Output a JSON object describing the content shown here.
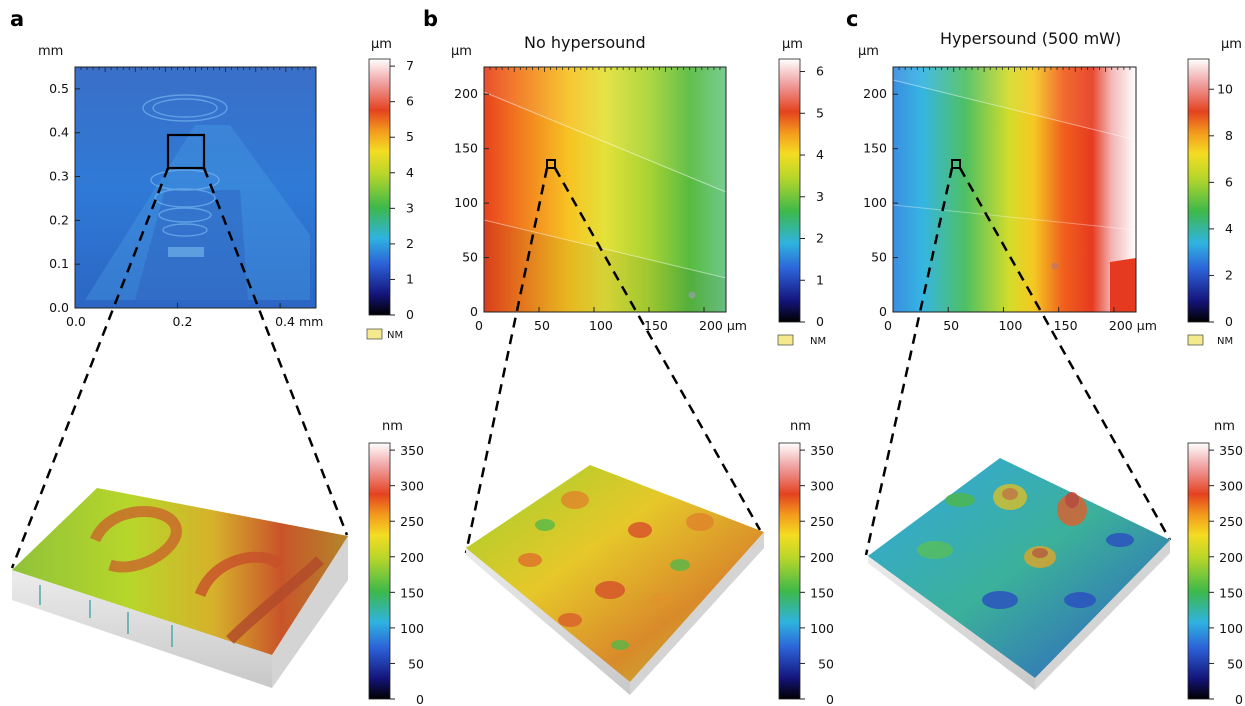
{
  "panels": [
    {
      "label": "a",
      "title": "",
      "map": {
        "y_unit": "mm",
        "x_ticks": [
          "0.0",
          "0.2",
          "0.4 mm"
        ],
        "y_ticks": [
          "0.0",
          "0.1",
          "0.2",
          "0.3",
          "0.4",
          "0.5"
        ],
        "x_range": [
          0,
          0.47
        ],
        "y_range": [
          0,
          0.55
        ]
      },
      "map_colorbar": {
        "unit": "µm",
        "ticks": [
          "0",
          "1",
          "2",
          "3",
          "4",
          "5",
          "6",
          "7"
        ],
        "range": [
          0,
          7.2
        ],
        "no_data_label": "NM"
      },
      "surface_colorbar": {
        "unit": "nm",
        "ticks": [
          "0",
          "50",
          "100",
          "150",
          "200",
          "250",
          "300",
          "350"
        ],
        "range": [
          0,
          360
        ]
      }
    },
    {
      "label": "b",
      "title": "No hypersound",
      "map": {
        "y_unit": "µm",
        "x_ticks": [
          "0",
          "50",
          "100",
          "150",
          "200 µm"
        ],
        "y_ticks": [
          "0",
          "50",
          "100",
          "150",
          "200"
        ],
        "x_range": [
          0,
          220
        ],
        "y_range": [
          0,
          225
        ]
      },
      "map_colorbar": {
        "unit": "µm",
        "ticks": [
          "0",
          "1",
          "2",
          "3",
          "4",
          "5",
          "6"
        ],
        "range": [
          0,
          6.3
        ],
        "no_data_label": "NM"
      },
      "surface_colorbar": {
        "unit": "nm",
        "ticks": [
          "0",
          "50",
          "100",
          "150",
          "200",
          "250",
          "300",
          "350"
        ],
        "range": [
          0,
          360
        ]
      }
    },
    {
      "label": "c",
      "title": "Hypersound (500 mW)",
      "map": {
        "y_unit": "µm",
        "x_ticks": [
          "0",
          "50",
          "100",
          "150",
          "200 µm"
        ],
        "y_ticks": [
          "0",
          "50",
          "100",
          "150",
          "200"
        ],
        "x_range": [
          0,
          220
        ],
        "y_range": [
          0,
          225
        ]
      },
      "map_colorbar": {
        "unit": "µm",
        "ticks": [
          "0",
          "2",
          "4",
          "6",
          "8",
          "10"
        ],
        "range": [
          0,
          11.3
        ],
        "no_data_label": "NM"
      },
      "surface_colorbar": {
        "unit": "nm",
        "ticks": [
          "0",
          "50",
          "100",
          "150",
          "200",
          "250",
          "300",
          "350"
        ],
        "range": [
          0,
          360
        ]
      }
    }
  ]
}
